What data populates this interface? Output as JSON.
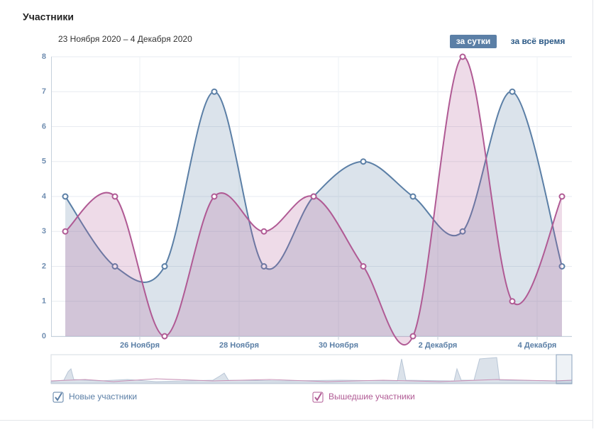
{
  "title": "Участники",
  "period": "23 Ноября 2020 – 4 Декабря 2020",
  "buttons": [
    "за сутки",
    "за всё время"
  ],
  "chart_data": {
    "type": "area",
    "categories": [
      null,
      null,
      null,
      null,
      null,
      null,
      null,
      null,
      null,
      null,
      null
    ],
    "xlim": [
      -0.2857,
      10.2
    ],
    "xticks": [
      {
        "value": 1.5,
        "label": "26 Ноября"
      },
      {
        "value": 3.5,
        "label": "28 Ноября"
      },
      {
        "value": 5.5,
        "label": "30 Ноября"
      },
      {
        "value": 7.5,
        "label": "2 Декабря"
      },
      {
        "value": 9.5,
        "label": "4 Декабря"
      }
    ],
    "ylim": [
      0,
      8
    ],
    "yticks": [
      0,
      1,
      2,
      3,
      4,
      5,
      6,
      7,
      8
    ],
    "grid": true,
    "series": [
      {
        "name": "Новые участники",
        "color": "#5b7fa6",
        "values": [
          4,
          2,
          2,
          7,
          2,
          4,
          5,
          4,
          3,
          7,
          2
        ]
      },
      {
        "name": "Вышедшие участники",
        "color": "#b05a94",
        "values": [
          3,
          4,
          0,
          4,
          3,
          4,
          2,
          0,
          8,
          1,
          4
        ]
      }
    ]
  }
}
